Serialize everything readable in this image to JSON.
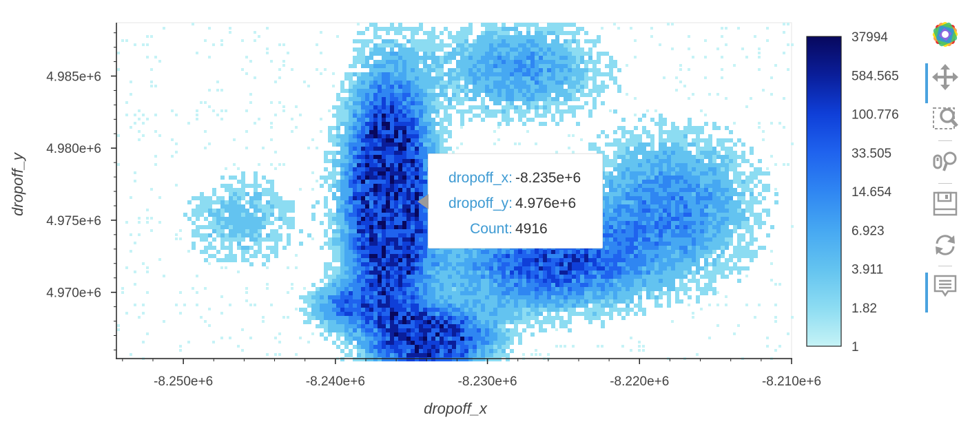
{
  "chart_data": {
    "type": "heatmap",
    "title": "",
    "xlabel": "dropoff_x",
    "ylabel": "dropoff_y",
    "x_ticks": [
      "-8.250e+6",
      "-8.240e+6",
      "-8.230e+6",
      "-8.220e+6",
      "-8.210e+6"
    ],
    "x_tick_values": [
      -8250000,
      -8240000,
      -8230000,
      -8220000,
      -8210000
    ],
    "y_ticks": [
      "4.985e+6",
      "4.980e+6",
      "4.975e+6",
      "4.970e+6"
    ],
    "y_tick_values": [
      4985000,
      4980000,
      4975000,
      4970000
    ],
    "xlim": [
      -8254400,
      -8210000
    ],
    "ylim": [
      4965400,
      4988700
    ],
    "colorbar": {
      "scale": "log",
      "labels": [
        "37994",
        "584.565",
        "100.776",
        "33.505",
        "14.654",
        "6.923",
        "3.911",
        "1.82",
        "1"
      ],
      "range": [
        1,
        37994
      ],
      "colors": [
        "#08085e",
        "#0a1e9a",
        "#0f3fd8",
        "#1f63ee",
        "#2f86f2",
        "#46a8f2",
        "#63c3f0",
        "#8cdcf2",
        "#c6f3f6"
      ]
    },
    "density_centers": [
      {
        "x": -8236500,
        "y": 4976500,
        "spread_x": 2500,
        "spread_y": 7500,
        "level": 1.0
      },
      {
        "x": -8233500,
        "y": 4966800,
        "spread_x": 3500,
        "spread_y": 2000,
        "level": 0.7
      },
      {
        "x": -8226000,
        "y": 4972000,
        "spread_x": 6000,
        "spread_y": 3000,
        "level": 0.5
      },
      {
        "x": -8218000,
        "y": 4976000,
        "spread_x": 5000,
        "spread_y": 4500,
        "level": 0.35
      },
      {
        "x": -8228000,
        "y": 4985500,
        "spread_x": 5000,
        "spread_y": 3000,
        "level": 0.3
      },
      {
        "x": -8246000,
        "y": 4975000,
        "spread_x": 3500,
        "spread_y": 3000,
        "level": 0.18
      },
      {
        "x": -8239500,
        "y": 4969000,
        "spread_x": 2000,
        "spread_y": 1500,
        "level": 0.35
      }
    ],
    "hover": {
      "x_label": "dropoff_x:",
      "x_value": "-8.235e+6",
      "y_label": "dropoff_y:",
      "y_value": "4.976e+6",
      "count_label": "Count:",
      "count_value": "4916"
    }
  },
  "toolbar": {
    "tools": [
      {
        "name": "bokeh-logo-icon",
        "active": false
      },
      {
        "name": "pan-tool-icon",
        "active": true
      },
      {
        "name": "box-zoom-tool-icon",
        "active": false
      },
      {
        "name": "wheel-zoom-tool-icon",
        "active": false
      },
      {
        "name": "save-tool-icon",
        "active": false
      },
      {
        "name": "reset-tool-icon",
        "active": false
      },
      {
        "name": "hover-tool-icon",
        "active": true
      }
    ],
    "accent_color": "#4aa3df",
    "icon_color": "#999999"
  }
}
